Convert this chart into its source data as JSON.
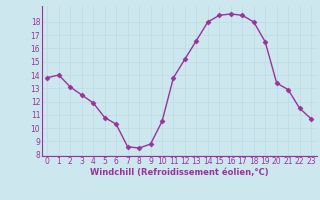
{
  "x": [
    0,
    1,
    2,
    3,
    4,
    5,
    6,
    7,
    8,
    9,
    10,
    11,
    12,
    13,
    14,
    15,
    16,
    17,
    18,
    19,
    20,
    21,
    22,
    23
  ],
  "y": [
    13.8,
    14.0,
    13.1,
    12.5,
    11.9,
    10.8,
    10.3,
    8.6,
    8.5,
    8.8,
    10.5,
    13.8,
    15.2,
    16.6,
    18.0,
    18.5,
    18.6,
    18.5,
    18.0,
    16.5,
    13.4,
    12.9,
    11.5,
    10.7
  ],
  "line_color": "#993399",
  "marker": "D",
  "markersize": 2.5,
  "linewidth": 1.0,
  "bg_color": "#cce8ee",
  "grid_color": "#b0d8e0",
  "xlabel": "Windchill (Refroidissement éolien,°C)",
  "xlabel_color": "#993399",
  "tick_color": "#993399",
  "ylim": [
    7.9,
    19.2
  ],
  "xlim": [
    -0.5,
    23.5
  ],
  "yticks": [
    8,
    9,
    10,
    11,
    12,
    13,
    14,
    15,
    16,
    17,
    18
  ],
  "xticks": [
    0,
    1,
    2,
    3,
    4,
    5,
    6,
    7,
    8,
    9,
    10,
    11,
    12,
    13,
    14,
    15,
    16,
    17,
    18,
    19,
    20,
    21,
    22,
    23
  ],
  "tick_fontsize": 5.5,
  "xlabel_fontsize": 6.0
}
